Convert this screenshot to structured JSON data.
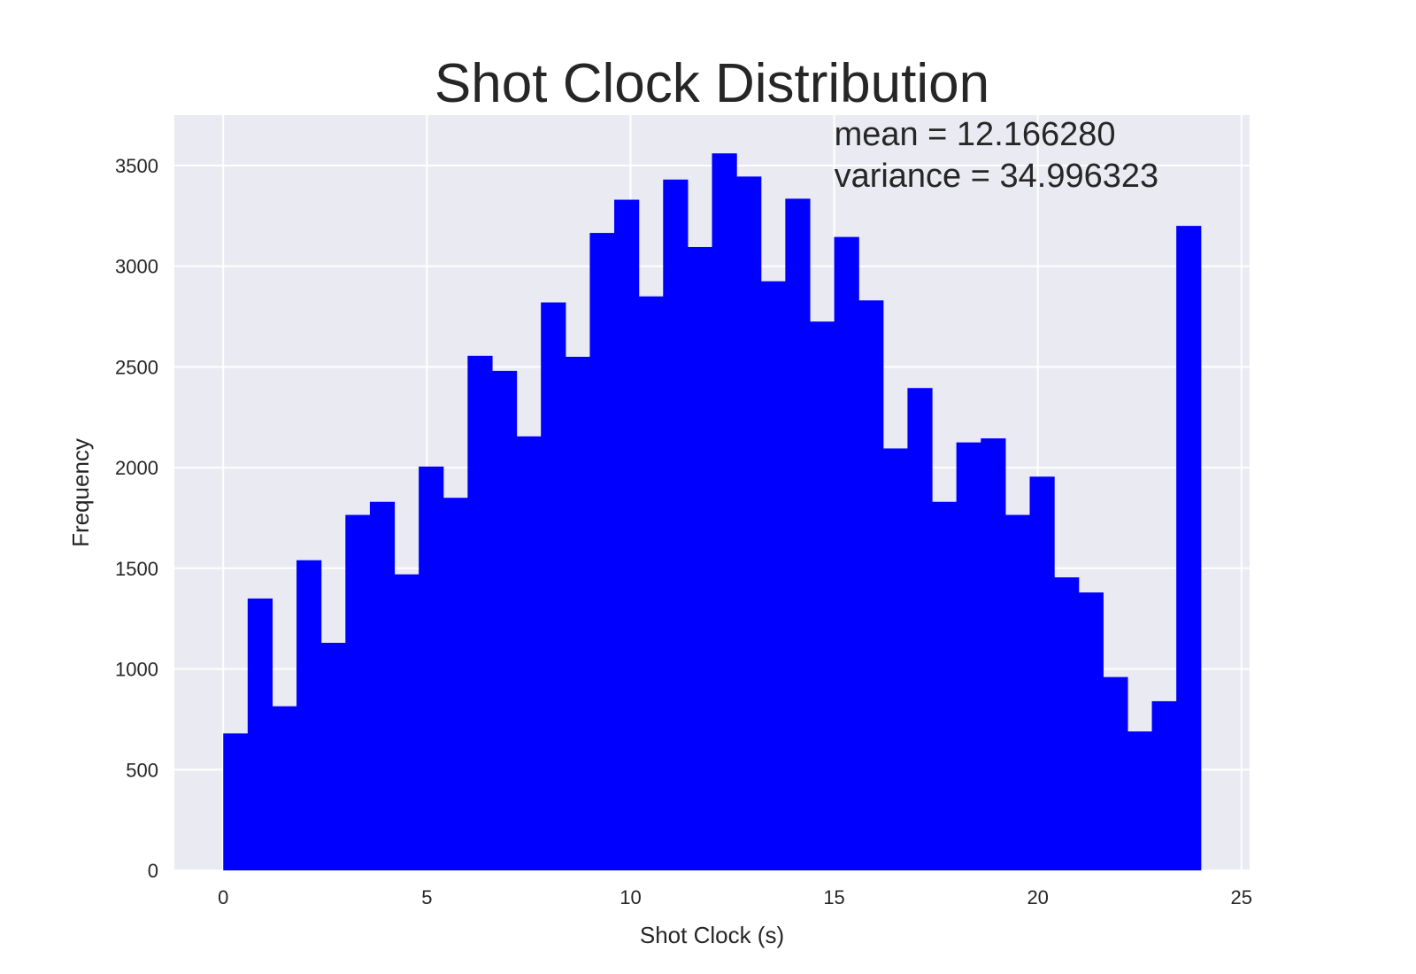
{
  "chart_data": {
    "type": "bar",
    "title": "Shot Clock Distribution",
    "xlabel": "Shot Clock (s)",
    "ylabel": "Frequency",
    "xlim": [
      -1.2,
      25.2
    ],
    "ylim": [
      0,
      3750
    ],
    "xticks": [
      0,
      5,
      10,
      15,
      20,
      25
    ],
    "yticks": [
      0,
      500,
      1000,
      1500,
      2000,
      2500,
      3000,
      3500
    ],
    "grid": true,
    "bin_start": 0,
    "bin_width": 0.6,
    "values": [
      680,
      1350,
      815,
      1540,
      1130,
      1765,
      1830,
      1470,
      2005,
      1850,
      2555,
      2480,
      2155,
      2820,
      2550,
      3165,
      3330,
      2850,
      3430,
      3095,
      3560,
      3445,
      2925,
      3335,
      2725,
      3145,
      2830,
      2095,
      2395,
      1830,
      2125,
      2145,
      1765,
      1955,
      1455,
      1380,
      960,
      690,
      840,
      3200
    ],
    "annotations": [
      "mean = 12.166280",
      "variance = 34.996323"
    ],
    "annotation_anchor": [
      15,
      3600
    ],
    "colors": {
      "bar": "#0000ff",
      "background": "#eaeaf2",
      "grid": "#ffffff"
    }
  }
}
